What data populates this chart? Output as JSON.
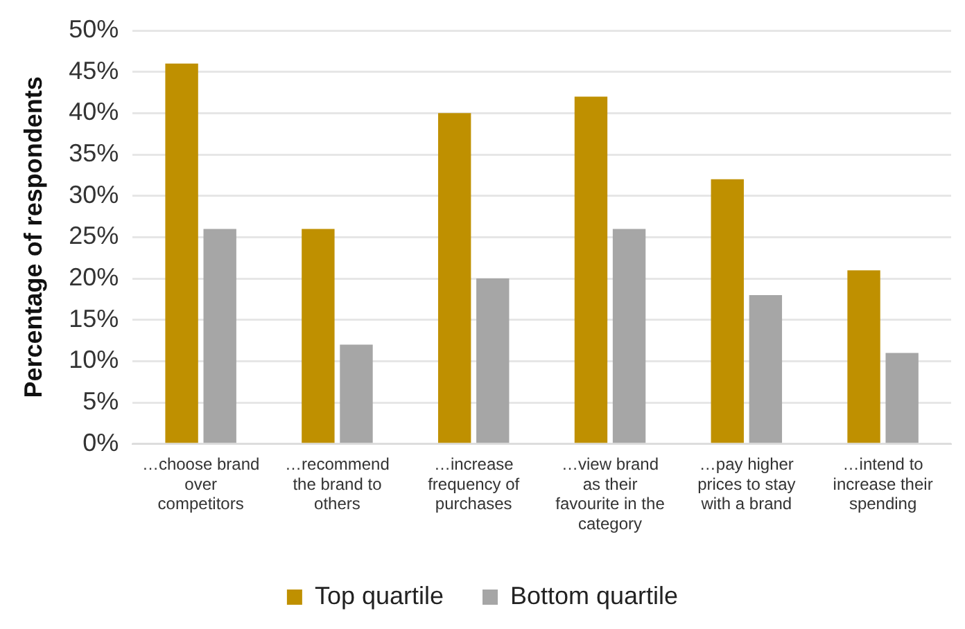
{
  "chart_data": {
    "type": "bar",
    "ylabel": "Percentage of respondents",
    "categories": [
      "…choose brand over competitors",
      "…recommend the brand to others",
      "…increase frequency of purchases",
      "…view brand as their favourite in the category",
      "…pay higher prices to stay with a brand",
      "…intend to increase their spending"
    ],
    "series": [
      {
        "name": "Top quartile",
        "color": "#bf9000",
        "values": [
          46,
          26,
          40,
          42,
          32,
          21
        ]
      },
      {
        "name": "Bottom quartile",
        "color": "#a6a6a6",
        "values": [
          26,
          12,
          20,
          26,
          18,
          11
        ]
      }
    ],
    "ylim": [
      0,
      50
    ],
    "yticks": [
      {
        "value": 0,
        "label": "0%"
      },
      {
        "value": 5,
        "label": "5%"
      },
      {
        "value": 10,
        "label": "10%"
      },
      {
        "value": 15,
        "label": "15%"
      },
      {
        "value": 20,
        "label": "20%"
      },
      {
        "value": 25,
        "label": "25%"
      },
      {
        "value": 30,
        "label": "30%"
      },
      {
        "value": 35,
        "label": "35%"
      },
      {
        "value": 40,
        "label": "40%"
      },
      {
        "value": 45,
        "label": "45%"
      },
      {
        "value": 50,
        "label": "50%"
      }
    ],
    "grid": "y",
    "legend": "bottom"
  }
}
